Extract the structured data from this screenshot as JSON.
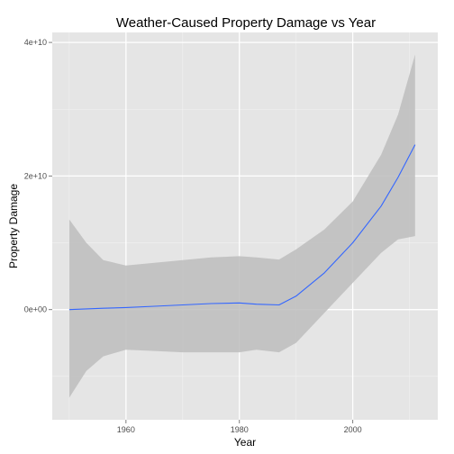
{
  "chart_data": {
    "type": "line",
    "title": "Weather-Caused Property Damage vs Year",
    "xlabel": "Year",
    "ylabel": "Property Damage",
    "xlim": [
      1947,
      2015
    ],
    "ylim": [
      -16500000000.0,
      41500000000.0
    ],
    "x_ticks": [
      1960,
      1980,
      2000
    ],
    "x_tick_labels": [
      "1960",
      "1980",
      "2000"
    ],
    "y_ticks": [
      0,
      20000000000.0,
      40000000000.0
    ],
    "y_tick_labels": [
      "0e+00",
      "2e+10",
      "4e+10"
    ],
    "grid": true,
    "legend": "none",
    "colors": {
      "panel": "#e5e5e5",
      "grid_major": "#ffffff",
      "grid_minor": "#f2f2f2",
      "ribbon": "#bdbdbd",
      "line": "#3366ff",
      "tick": "#7f7f7f"
    },
    "series": [
      {
        "x": [
          1950,
          1953,
          1956,
          1960,
          1965,
          1970,
          1975,
          1980,
          1983,
          1987,
          1990,
          1995,
          2000,
          2005,
          2008,
          2011
        ],
        "y": [
          0,
          100000000.0,
          200000000.0,
          300000000.0,
          500000000.0,
          700000000.0,
          900000000.0,
          1000000000.0,
          800000000.0,
          700000000.0,
          2000000000.0,
          5500000000.0,
          10000000000.0,
          15500000000.0,
          19800000000.0,
          24700000000.0
        ],
        "lower": [
          -13200000000.0,
          -9200000000.0,
          -7000000000.0,
          -6000000000.0,
          -6200000000.0,
          -6400000000.0,
          -6400000000.0,
          -6400000000.0,
          -6000000000.0,
          -6400000000.0,
          -5000000000.0,
          -500000000.0,
          4000000000.0,
          8500000000.0,
          10500000000.0,
          11000000000.0
        ],
        "upper": [
          13500000000.0,
          10000000000.0,
          7400000000.0,
          6600000000.0,
          7000000000.0,
          7400000000.0,
          7800000000.0,
          8000000000.0,
          7800000000.0,
          7500000000.0,
          9000000000.0,
          12000000000.0,
          16200000000.0,
          23200000000.0,
          29200000000.0,
          38200000000.0
        ]
      }
    ]
  }
}
